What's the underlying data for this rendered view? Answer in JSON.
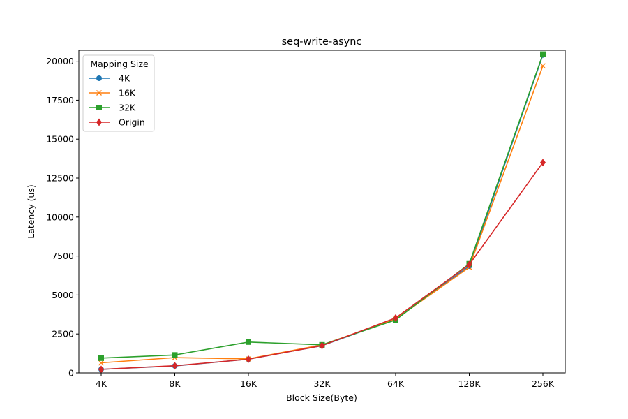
{
  "chart_data": {
    "type": "line",
    "title": "seq-write-async",
    "xlabel": "Block Size(Byte)",
    "ylabel": "Latency (us)",
    "categories": [
      "4K",
      "8K",
      "16K",
      "32K",
      "64K",
      "128K",
      "256K"
    ],
    "ylim": [
      0,
      20700
    ],
    "yticks": [
      0,
      2500,
      5000,
      7500,
      10000,
      12500,
      15000,
      17500,
      20000
    ],
    "grid": false,
    "legend": {
      "title": "Mapping Size",
      "position": "upper-left"
    },
    "series": [
      {
        "name": "4K",
        "color": "#1f77b4",
        "marker": "circle",
        "values": [
          230,
          450,
          880,
          1750,
          3450,
          6850,
          20400
        ]
      },
      {
        "name": "16K",
        "color": "#ff7f0e",
        "marker": "x",
        "values": [
          650,
          980,
          900,
          1800,
          3450,
          6780,
          19700
        ]
      },
      {
        "name": "32K",
        "color": "#2ca02c",
        "marker": "square",
        "values": [
          950,
          1150,
          1980,
          1800,
          3400,
          7000,
          20450
        ]
      },
      {
        "name": "Origin",
        "color": "#d62728",
        "marker": "diamond",
        "values": [
          230,
          460,
          880,
          1750,
          3530,
          6950,
          13500
        ]
      }
    ]
  }
}
